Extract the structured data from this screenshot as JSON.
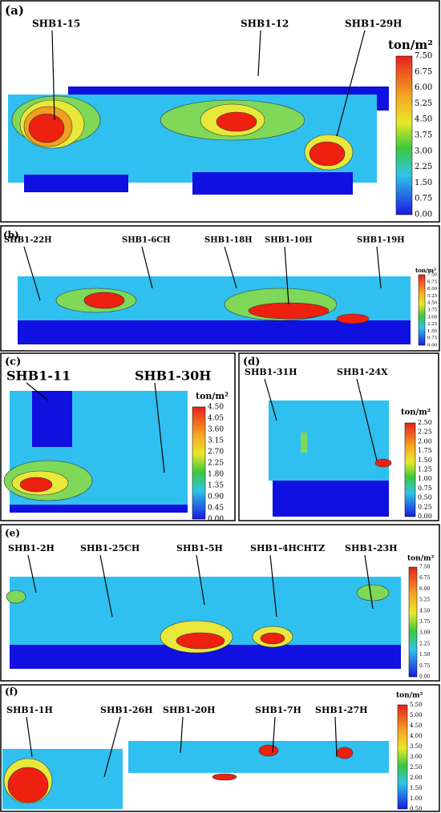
{
  "panels": [
    {
      "label": "(a)",
      "wells": [
        "SHB1-15",
        "SHB1-12",
        "SHB1-29H"
      ],
      "unit": "ton/m²",
      "ticks": [
        "7.50",
        "6.75",
        "6.00",
        "5.25",
        "4.50",
        "3.75",
        "3.00",
        "2.25",
        "1.50",
        "0.75",
        "0.00"
      ]
    },
    {
      "label": "(b)",
      "wells": [
        "SHB1-22H",
        "SHB1-6CH",
        "SHB1-18H",
        "SHB1-10H",
        "SHB1-19H"
      ],
      "unit": "ton/m²",
      "ticks": [
        "7.50",
        "6.75",
        "6.00",
        "5.25",
        "4.50",
        "3.75",
        "3.00",
        "2.25",
        "1.50",
        "0.75",
        "0.00"
      ]
    },
    {
      "label": "(c)",
      "wells": [
        "SHB1-11",
        "SHB1-30H"
      ],
      "unit": "ton/m²",
      "ticks": [
        "4.50",
        "4.05",
        "3.60",
        "3.15",
        "2.70",
        "2.25",
        "1.80",
        "1.35",
        "0.90",
        "0.45",
        "0.00"
      ]
    },
    {
      "label": "(d)",
      "wells": [
        "SHB1-31H",
        "SHB1-24X"
      ],
      "unit": "ton/m²",
      "ticks": [
        "2.50",
        "2.25",
        "2.00",
        "1.75",
        "1.50",
        "1.25",
        "1.00",
        "0.75",
        "0.50",
        "0.25",
        "0.00"
      ]
    },
    {
      "label": "(e)",
      "wells": [
        "SHB1-2H",
        "SHB1-25CH",
        "SHB1-5H",
        "SHB1-4HCHTZ",
        "SHB1-23H"
      ],
      "unit": "ton/m²",
      "ticks": [
        "7.50",
        "6.75",
        "6.00",
        "5.25",
        "4.50",
        "3.75",
        "3.00",
        "2.25",
        "1.50",
        "0.75",
        "0.00"
      ]
    },
    {
      "label": "(f)",
      "wells": [
        "SHB1-1H",
        "SHB1-26H",
        "SHB1-20H",
        "SHB1-7H",
        "SHB1-27H"
      ],
      "unit": "ton/m²",
      "ticks": [
        "5.50",
        "5.00",
        "4.50",
        "4.00",
        "3.50",
        "3.00",
        "2.50",
        "2.00",
        "1.50",
        "1.00",
        "0.50"
      ]
    }
  ]
}
